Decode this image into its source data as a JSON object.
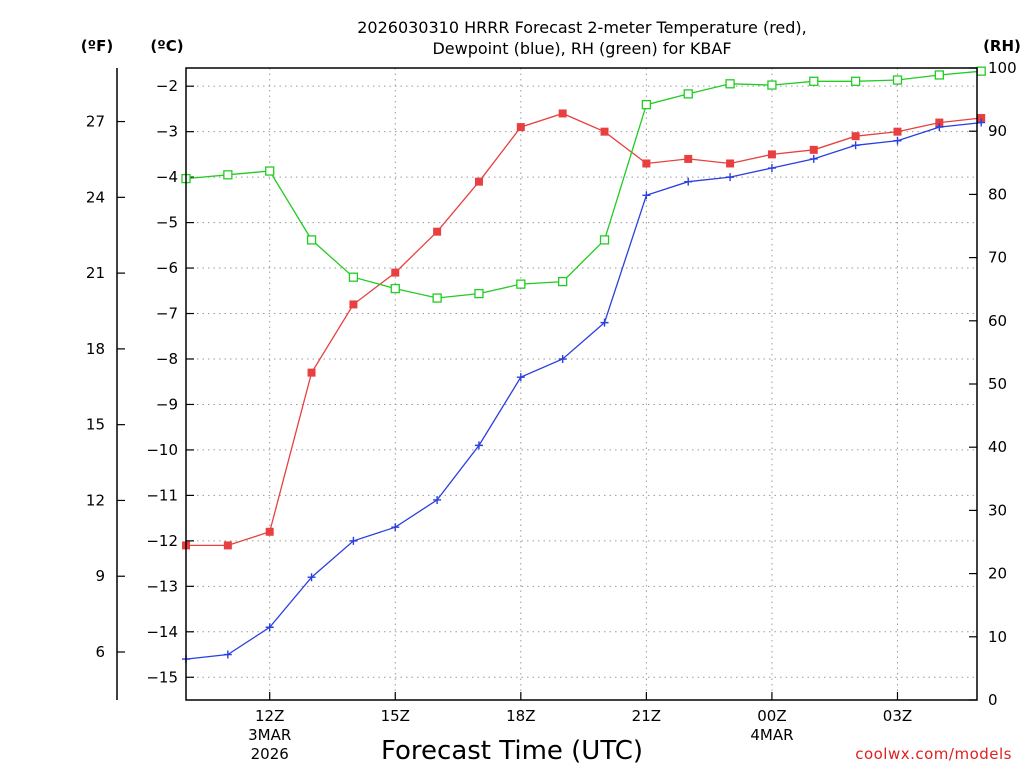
{
  "chart_data": {
    "type": "line",
    "title_line1": "2026030310 HRRR Forecast 2-meter Temperature (red),",
    "title_line2": "Dewpoint (blue), RH (green) for KBAF",
    "xlabel": "Forecast Time (UTC)",
    "credit": "coolwx.com/models",
    "units": {
      "fahrenheit": "(ºF)",
      "celsius": "(ºC)",
      "rh": "(RH)"
    },
    "x_hours": [
      9,
      10,
      11,
      12,
      13,
      14,
      15,
      16,
      17,
      18,
      19,
      20,
      21,
      22,
      23,
      24,
      25,
      26,
      27,
      28
    ],
    "xlim": [
      9,
      27.9
    ],
    "x_ticks": [
      {
        "hour": 11,
        "label": "12Z",
        "sub1": "3MAR",
        "sub2": "2026"
      },
      {
        "hour": 14,
        "label": "15Z"
      },
      {
        "hour": 17,
        "label": "18Z"
      },
      {
        "hour": 20,
        "label": "21Z"
      },
      {
        "hour": 23,
        "label": "00Z",
        "sub1": "4MAR"
      },
      {
        "hour": 26,
        "label": "03Z"
      }
    ],
    "celsius_axis": {
      "ylim": [
        -15.5,
        -1.6
      ],
      "ticks": [
        -2,
        -3,
        -4,
        -5,
        -6,
        -7,
        -8,
        -9,
        -10,
        -11,
        -12,
        -13,
        -14,
        -15
      ],
      "tick_labels": [
        "−2",
        "−3",
        "−4",
        "−5",
        "−6",
        "−7",
        "−8",
        "−9",
        "−10",
        "−11",
        "−12",
        "−13",
        "−14",
        "−15"
      ]
    },
    "fahrenheit_axis": {
      "ticks": [
        6,
        9,
        12,
        15,
        18,
        21,
        24,
        27
      ],
      "tick_labels": [
        "6",
        "9",
        "12",
        "15",
        "18",
        "21",
        "24",
        "27"
      ]
    },
    "rh_axis": {
      "ylim": [
        0,
        100
      ],
      "ticks": [
        0,
        10,
        20,
        30,
        40,
        50,
        60,
        70,
        80,
        90,
        100
      ],
      "tick_labels": [
        "0",
        "10",
        "20",
        "30",
        "40",
        "50",
        "60",
        "70",
        "80",
        "90",
        "100"
      ]
    },
    "series": [
      {
        "name": "Temperature",
        "axis": "celsius",
        "color": "#e84040",
        "marker": "filled-square",
        "values": [
          -12.1,
          -12.1,
          -11.8,
          -8.3,
          -6.8,
          -6.1,
          -5.2,
          -4.1,
          -2.9,
          -2.6,
          -3.0,
          -3.7,
          -3.6,
          -3.7,
          -3.5,
          -3.4,
          -3.1,
          -3.0,
          -2.8,
          -2.7
        ]
      },
      {
        "name": "Dewpoint",
        "axis": "celsius",
        "color": "#2a3fe0",
        "marker": "plus",
        "values": [
          -14.6,
          -14.5,
          -13.9,
          -12.8,
          -12.0,
          -11.7,
          -11.1,
          -9.9,
          -8.4,
          -8.0,
          -7.2,
          -4.4,
          -4.1,
          -4.0,
          -3.8,
          -3.6,
          -3.3,
          -3.2,
          -2.9,
          -2.8
        ]
      },
      {
        "name": "RH",
        "axis": "rh",
        "color": "#22cc22",
        "marker": "open-square",
        "values": [
          82.5,
          83.1,
          83.7,
          72.8,
          66.9,
          65.1,
          63.6,
          64.3,
          65.8,
          66.2,
          72.8,
          94.2,
          95.9,
          97.5,
          97.3,
          97.9,
          97.9,
          98.1,
          98.9,
          99.5
        ]
      }
    ]
  }
}
